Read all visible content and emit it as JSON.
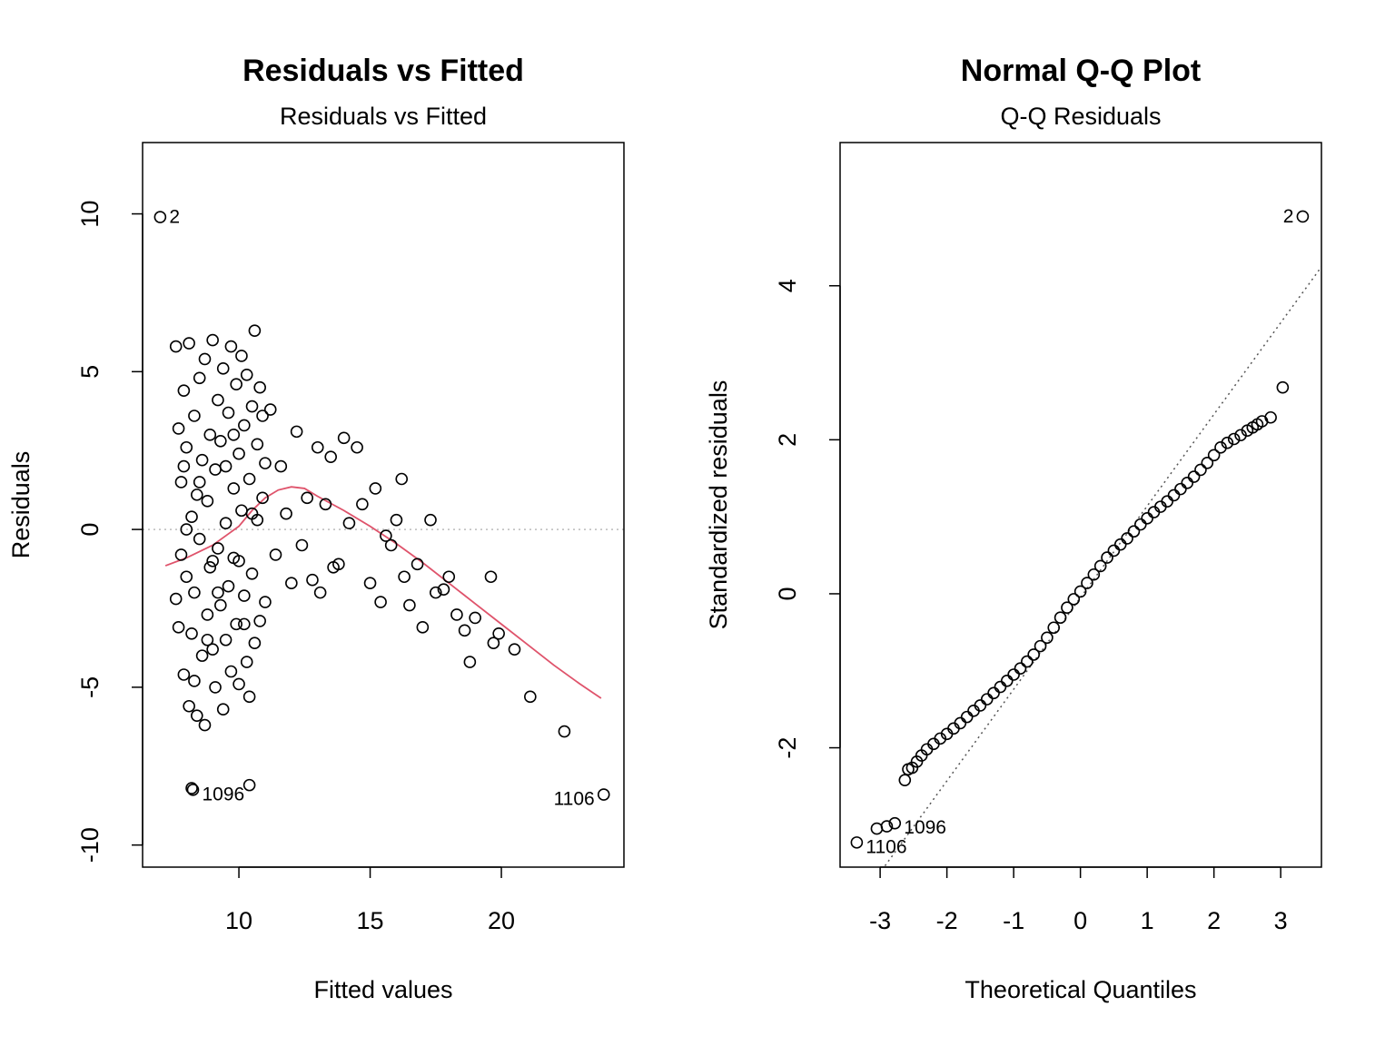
{
  "chart_data": [
    {
      "type": "scatter",
      "title": "Residuals vs Fitted",
      "subtitle": "Residuals vs Fitted",
      "x_label": "Fitted values",
      "y_label": "Residuals",
      "xlim": [
        6.33,
        24.67
      ],
      "ylim": [
        -10.7,
        12.26
      ],
      "xticks": [
        10,
        15,
        20
      ],
      "yticks": [
        -10,
        -5,
        0,
        5,
        10
      ],
      "hline": 0,
      "color": "#000000",
      "x": [
        7.6,
        7.7,
        7.6,
        7.7,
        7.8,
        7.8,
        7.9,
        7.9,
        8.0,
        8.0,
        8.1,
        8.1,
        8.2,
        8.2,
        8.3,
        8.3,
        8.4,
        8.4,
        8.5,
        8.5,
        8.6,
        8.6,
        8.7,
        8.7,
        8.8,
        8.8,
        8.9,
        8.9,
        9.0,
        9.0,
        9.1,
        9.1,
        9.2,
        9.2,
        9.3,
        9.3,
        9.4,
        9.4,
        9.5,
        9.5,
        9.6,
        9.6,
        9.7,
        9.7,
        9.8,
        9.8,
        9.9,
        9.9,
        10.0,
        10.0,
        10.1,
        10.1,
        10.2,
        10.2,
        10.3,
        10.3,
        10.4,
        10.4,
        10.5,
        10.5,
        10.6,
        10.6,
        10.7,
        10.7,
        10.8,
        10.8,
        10.9,
        10.9,
        11.0,
        11.0,
        8.0,
        8.5,
        9.0,
        9.5,
        10.0,
        10.5,
        9.2,
        8.8,
        9.8,
        10.2,
        7.9,
        8.3,
        11.2,
        11.4,
        11.6,
        11.8,
        12.0,
        12.2,
        12.4,
        12.6,
        12.8,
        13.0,
        13.1,
        13.3,
        13.5,
        13.6,
        13.8,
        14.0,
        14.2,
        14.5,
        14.7,
        15.0,
        15.2,
        15.4,
        15.6,
        15.8,
        16.0,
        16.2,
        16.3,
        16.5,
        16.8,
        17.0,
        17.3,
        17.5,
        17.8,
        18.0,
        18.3,
        18.6,
        18.8,
        19.0,
        19.6,
        19.7,
        19.9,
        20.5,
        21.1,
        22.4,
        23.9,
        7.0,
        8.2,
        8.25,
        10.4
      ],
      "values": [
        5.8,
        3.2,
        -2.2,
        -3.1,
        1.5,
        -0.8,
        4.4,
        -4.6,
        2.6,
        -1.5,
        5.9,
        -5.6,
        0.4,
        -3.3,
        3.6,
        -2.0,
        1.1,
        -5.9,
        4.8,
        -0.3,
        2.2,
        -4.0,
        -6.2,
        5.4,
        0.9,
        -2.7,
        3.0,
        -1.2,
        6.0,
        -3.8,
        1.9,
        -5.0,
        4.1,
        -0.6,
        2.8,
        -2.4,
        5.1,
        -5.7,
        0.2,
        -3.5,
        3.7,
        -1.8,
        5.8,
        -4.5,
        1.3,
        -0.9,
        4.6,
        -3.0,
        2.4,
        -4.9,
        5.5,
        0.6,
        -2.1,
        3.3,
        4.9,
        -4.2,
        1.6,
        -5.3,
        3.9,
        -1.4,
        6.3,
        -3.6,
        2.7,
        0.3,
        4.5,
        -2.9,
        1.0,
        3.6,
        -2.3,
        2.1,
        0.0,
        1.5,
        -1.0,
        2.0,
        -1.0,
        0.5,
        -2.0,
        -3.5,
        3.0,
        -3.0,
        2.0,
        -4.8,
        3.8,
        -0.8,
        2.0,
        0.5,
        -1.7,
        3.1,
        -0.5,
        1.0,
        -1.6,
        2.6,
        -2.0,
        0.8,
        2.3,
        -1.2,
        -1.1,
        2.9,
        0.2,
        2.6,
        0.8,
        -1.7,
        1.3,
        -2.3,
        -0.2,
        -0.5,
        0.3,
        1.6,
        -1.5,
        -2.4,
        -1.1,
        -3.1,
        0.3,
        -2.0,
        -1.9,
        -1.5,
        -2.7,
        -3.2,
        -4.2,
        -2.8,
        -1.5,
        -3.6,
        -3.3,
        -3.8,
        -5.3,
        -6.4,
        -8.4,
        9.9,
        -8.2,
        -8.25,
        -8.1
      ],
      "smooth": {
        "color": "#DF536B",
        "x": [
          7.2,
          8,
          9,
          10,
          10.5,
          11,
          11.5,
          12,
          12.5,
          13,
          14,
          15,
          16,
          17,
          18,
          19,
          20,
          21,
          22,
          23,
          23.8
        ],
        "values": [
          -1.15,
          -0.9,
          -0.5,
          0.1,
          0.6,
          1.0,
          1.25,
          1.35,
          1.3,
          1.05,
          0.6,
          0.1,
          -0.45,
          -1.05,
          -1.7,
          -2.35,
          -3.0,
          -3.65,
          -4.3,
          -4.9,
          -5.35
        ]
      },
      "annotations": [
        {
          "text": "2",
          "x": 7.0,
          "y": 9.9
        },
        {
          "text": "1096",
          "x": 8.25,
          "y": -8.25
        },
        {
          "text": "1106",
          "x": 23.9,
          "y": -8.4
        }
      ]
    },
    {
      "type": "scatter",
      "title": "Normal Q-Q Plot",
      "subtitle": "Q-Q Residuals",
      "x_label": "Theoretical Quantiles",
      "y_label": "Standardized residuals",
      "xlim": [
        -3.6,
        3.61
      ],
      "ylim": [
        -3.55,
        5.86
      ],
      "xticks": [
        -3,
        -2,
        -1,
        0,
        1,
        2,
        3
      ],
      "yticks": [
        -2,
        0,
        2,
        4
      ],
      "refline": {
        "intercept": -0.05,
        "slope": 1.19
      },
      "color": "#000000",
      "x": [
        -3.35,
        -3.05,
        -2.9,
        -2.78,
        -2.63,
        -2.58,
        -2.52,
        -2.45,
        -2.38,
        -2.3,
        -2.2,
        -2.1,
        -2.0,
        -1.9,
        -1.8,
        -1.7,
        -1.6,
        -1.5,
        -1.4,
        -1.3,
        -1.2,
        -1.1,
        -1.0,
        -0.9,
        -0.8,
        -0.7,
        -0.6,
        -0.5,
        -0.4,
        -0.3,
        -0.2,
        -0.1,
        0,
        0.1,
        0.2,
        0.3,
        0.4,
        0.5,
        0.6,
        0.7,
        0.8,
        0.9,
        1.0,
        1.1,
        1.2,
        1.3,
        1.4,
        1.5,
        1.6,
        1.7,
        1.8,
        1.9,
        2.0,
        2.1,
        2.2,
        2.3,
        2.4,
        2.5,
        2.58,
        2.65,
        2.72,
        2.85,
        3.03,
        3.33
      ],
      "values": [
        -3.23,
        -3.05,
        -3.02,
        -2.98,
        -2.42,
        -2.28,
        -2.26,
        -2.18,
        -2.1,
        -2.02,
        -1.95,
        -1.88,
        -1.82,
        -1.75,
        -1.68,
        -1.6,
        -1.52,
        -1.45,
        -1.37,
        -1.29,
        -1.21,
        -1.13,
        -1.05,
        -0.97,
        -0.88,
        -0.79,
        -0.68,
        -0.57,
        -0.44,
        -0.31,
        -0.18,
        -0.07,
        0.03,
        0.14,
        0.25,
        0.36,
        0.47,
        0.56,
        0.64,
        0.72,
        0.81,
        0.9,
        0.98,
        1.06,
        1.13,
        1.2,
        1.28,
        1.36,
        1.44,
        1.52,
        1.61,
        1.7,
        1.8,
        1.9,
        1.96,
        2.01,
        2.06,
        2.12,
        2.16,
        2.2,
        2.24,
        2.29,
        2.68,
        4.9
      ],
      "annotations": [
        {
          "text": "2",
          "x": 3.33,
          "y": 4.9
        },
        {
          "text": "1096",
          "x": -2.78,
          "y": -2.98
        },
        {
          "text": "1106",
          "x": -3.35,
          "y": -3.23
        }
      ]
    }
  ]
}
